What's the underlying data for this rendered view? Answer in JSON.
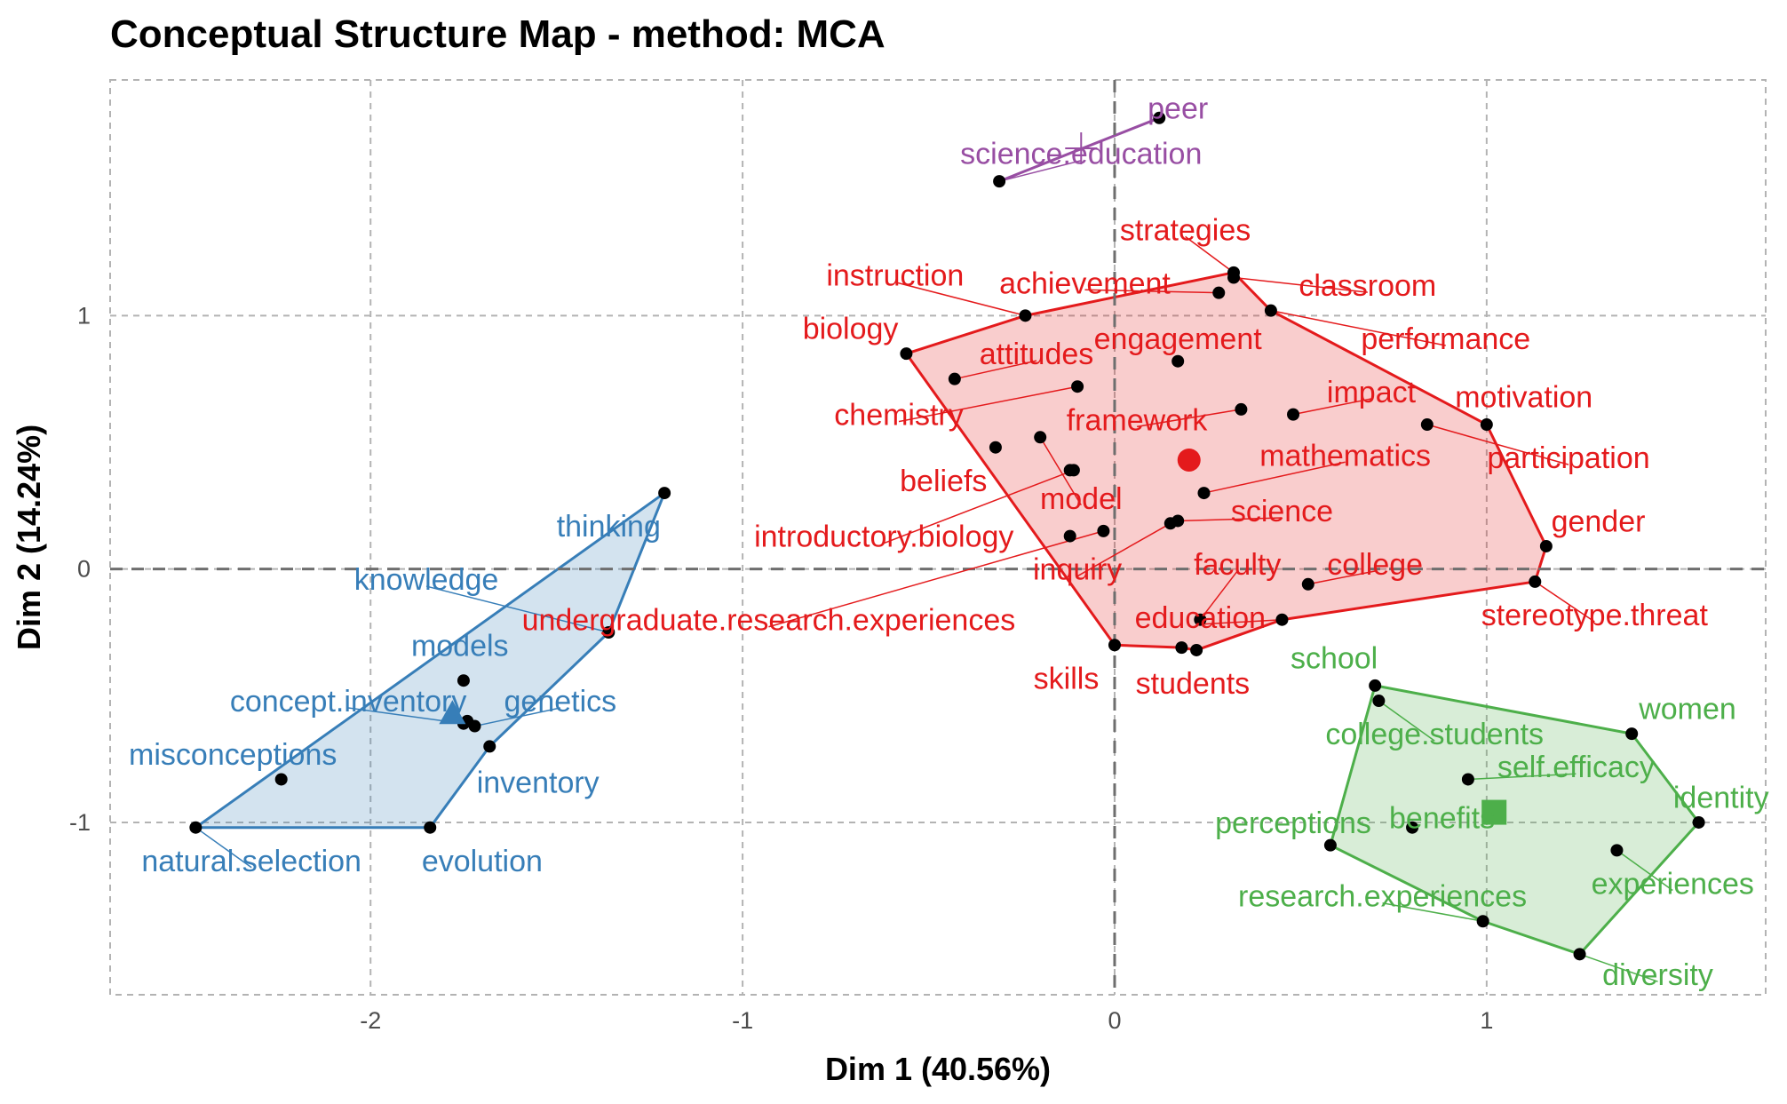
{
  "chart_data": {
    "type": "scatter",
    "title": "Conceptual Structure Map - method: MCA",
    "xlabel": "Dim 1 (40.56%)",
    "ylabel": "Dim 2 (14.24%)",
    "xlim": [
      -2.7,
      1.75
    ],
    "ylim": [
      -1.68,
      1.93
    ],
    "x_ticks": [
      -2,
      -1,
      0,
      1
    ],
    "y_ticks": [
      -1,
      0,
      1
    ],
    "grid": true,
    "colors": {
      "red": "#E41A1C",
      "blue": "#377EB8",
      "green": "#4DAF4A",
      "purple": "#984EA3"
    },
    "series": [
      {
        "name": "",
        "color": "#984EA3",
        "centroid_marker": "cross",
        "centroid": [
          -0.09,
          1.66
        ],
        "points": [
          {
            "term": "peer",
            "x": 0.12,
            "y": 1.78,
            "lx": 0.17,
            "ly": 1.82
          },
          {
            "term": "science.education",
            "x": -0.31,
            "y": 1.53,
            "lx": -0.09,
            "ly": 1.64
          }
        ]
      },
      {
        "name": "",
        "color": "#E41A1C",
        "centroid_marker": "circle",
        "centroid": [
          0.2,
          0.43
        ],
        "points": [
          {
            "term": "strategies",
            "x": 0.32,
            "y": 1.17,
            "lx": 0.19,
            "ly": 1.34
          },
          {
            "term": "instruction",
            "x": -0.24,
            "y": 1.0,
            "lx": -0.59,
            "ly": 1.16
          },
          {
            "term": "achievement",
            "x": 0.28,
            "y": 1.09,
            "lx": -0.08,
            "ly": 1.13
          },
          {
            "term": "classroom",
            "x": 0.32,
            "y": 1.15,
            "lx": 0.68,
            "ly": 1.12
          },
          {
            "term": "biology",
            "x": -0.56,
            "y": 0.85,
            "lx": -0.71,
            "ly": 0.95
          },
          {
            "term": "performance",
            "x": 0.42,
            "y": 1.02,
            "lx": 0.89,
            "ly": 0.91
          },
          {
            "term": "engagement",
            "x": 0.17,
            "y": 0.82,
            "lx": 0.17,
            "ly": 0.91
          },
          {
            "term": "attitudes",
            "x": -0.43,
            "y": 0.75,
            "lx": -0.21,
            "ly": 0.85
          },
          {
            "term": "impact",
            "x": 0.48,
            "y": 0.61,
            "lx": 0.69,
            "ly": 0.7
          },
          {
            "term": "motivation",
            "x": 1.0,
            "y": 0.57,
            "lx": 1.1,
            "ly": 0.68
          },
          {
            "term": "chemistry",
            "x": -0.1,
            "y": 0.72,
            "lx": -0.58,
            "ly": 0.61
          },
          {
            "term": "framework",
            "x": 0.34,
            "y": 0.63,
            "lx": 0.06,
            "ly": 0.59
          },
          {
            "term": "mathematics",
            "x": 0.24,
            "y": 0.3,
            "lx": 0.62,
            "ly": 0.45
          },
          {
            "term": "participation",
            "x": 0.84,
            "y": 0.57,
            "lx": 1.22,
            "ly": 0.44
          },
          {
            "term": "beliefs",
            "x": -0.32,
            "y": 0.48,
            "lx": -0.46,
            "ly": 0.35
          },
          {
            "term": "model",
            "x": -0.2,
            "y": 0.52,
            "lx": -0.09,
            "ly": 0.28
          },
          {
            "term": "science",
            "x": 0.17,
            "y": 0.19,
            "lx": 0.45,
            "ly": 0.23
          },
          {
            "term": "gender",
            "x": 1.16,
            "y": 0.09,
            "lx": 1.3,
            "ly": 0.19
          },
          {
            "term": "introductory.biology",
            "x": -0.11,
            "y": 0.39,
            "lx": -0.62,
            "ly": 0.13
          },
          {
            "term": "inquiry",
            "x": 0.15,
            "y": 0.18,
            "lx": -0.1,
            "ly": 0.0
          },
          {
            "term": "faculty",
            "x": 0.23,
            "y": -0.2,
            "lx": 0.33,
            "ly": 0.02
          },
          {
            "term": "college",
            "x": 0.52,
            "y": -0.06,
            "lx": 0.7,
            "ly": 0.02
          },
          {
            "term": "stereotype.threat",
            "x": 1.13,
            "y": -0.05,
            "lx": 1.29,
            "ly": -0.18
          },
          {
            "term": "undergraduate.research.experiences",
            "x": -0.03,
            "y": 0.15,
            "lx": -0.93,
            "ly": -0.2
          },
          {
            "term": "education",
            "x": 0.45,
            "y": -0.2,
            "lx": 0.23,
            "ly": -0.19
          },
          {
            "term": "skills",
            "x": 0.0,
            "y": -0.3,
            "lx": -0.13,
            "ly": -0.43
          },
          {
            "term": "students",
            "x": 0.18,
            "y": -0.31,
            "lx": 0.21,
            "ly": -0.45
          },
          {
            "term": "x",
            "x": 0.22,
            "y": -0.32,
            "lx": null,
            "ly": null
          },
          {
            "term": "x",
            "x": -0.12,
            "y": 0.13,
            "lx": null,
            "ly": null
          },
          {
            "term": "x",
            "x": -0.12,
            "y": 0.39,
            "lx": null,
            "ly": null
          }
        ]
      },
      {
        "name": "",
        "color": "#377EB8",
        "centroid_marker": "triangle",
        "centroid": [
          -1.78,
          -0.57
        ],
        "points": [
          {
            "term": "thinking",
            "x": -1.21,
            "y": 0.3,
            "lx": -1.36,
            "ly": 0.17
          },
          {
            "term": "knowledge",
            "x": -1.36,
            "y": -0.25,
            "lx": -1.85,
            "ly": -0.04
          },
          {
            "term": "models",
            "x": -1.75,
            "y": -0.44,
            "lx": -1.76,
            "ly": -0.3
          },
          {
            "term": "concept.inventory",
            "x": -1.75,
            "y": -0.61,
            "lx": -2.06,
            "ly": -0.52
          },
          {
            "term": "genetics",
            "x": -1.72,
            "y": -0.62,
            "lx": -1.49,
            "ly": -0.52
          },
          {
            "term": "misconceptions",
            "x": -2.24,
            "y": -0.83,
            "lx": -2.37,
            "ly": -0.73
          },
          {
            "term": "inventory",
            "x": -1.68,
            "y": -0.7,
            "lx": -1.55,
            "ly": -0.84
          },
          {
            "term": "natural.selection",
            "x": -2.47,
            "y": -1.02,
            "lx": -2.32,
            "ly": -1.15
          },
          {
            "term": "evolution",
            "x": -1.84,
            "y": -1.02,
            "lx": -1.7,
            "ly": -1.15
          },
          {
            "term": "x",
            "x": -1.74,
            "y": -0.6,
            "lx": null,
            "ly": null
          }
        ]
      },
      {
        "name": "",
        "color": "#4DAF4A",
        "centroid_marker": "square",
        "centroid": [
          1.02,
          -0.96
        ],
        "points": [
          {
            "term": "school",
            "x": 0.7,
            "y": -0.46,
            "lx": 0.59,
            "ly": -0.35
          },
          {
            "term": "college.students",
            "x": 0.71,
            "y": -0.52,
            "lx": 0.86,
            "ly": -0.65
          },
          {
            "term": "women",
            "x": 1.39,
            "y": -0.65,
            "lx": 1.54,
            "ly": -0.55
          },
          {
            "term": "self.efficacy",
            "x": 0.95,
            "y": -0.83,
            "lx": 1.24,
            "ly": -0.78
          },
          {
            "term": "identity",
            "x": 1.57,
            "y": -1.0,
            "lx": 1.63,
            "ly": -0.9
          },
          {
            "term": "perceptions",
            "x": 0.58,
            "y": -1.09,
            "lx": 0.48,
            "ly": -1.0
          },
          {
            "term": "benefits",
            "x": 0.8,
            "y": -1.02,
            "lx": 0.88,
            "ly": -0.98
          },
          {
            "term": "research.experiences",
            "x": 0.99,
            "y": -1.39,
            "lx": 0.72,
            "ly": -1.29
          },
          {
            "term": "experiences",
            "x": 1.35,
            "y": -1.11,
            "lx": 1.5,
            "ly": -1.24
          },
          {
            "term": "diversity",
            "x": 1.25,
            "y": -1.52,
            "lx": 1.46,
            "ly": -1.6
          }
        ]
      }
    ],
    "hulls": [
      {
        "color": "#E41A1C",
        "points": [
          [
            -0.56,
            0.85
          ],
          [
            -0.24,
            1.0
          ],
          [
            0.32,
            1.17
          ],
          [
            0.42,
            1.02
          ],
          [
            1.0,
            0.57
          ],
          [
            1.16,
            0.09
          ],
          [
            1.13,
            -0.05
          ],
          [
            0.45,
            -0.2
          ],
          [
            0.22,
            -0.32
          ],
          [
            0.18,
            -0.31
          ],
          [
            0.0,
            -0.3
          ]
        ]
      },
      {
        "color": "#377EB8",
        "points": [
          [
            -1.21,
            0.3
          ],
          [
            -1.36,
            -0.25
          ],
          [
            -1.68,
            -0.7
          ],
          [
            -1.84,
            -1.02
          ],
          [
            -2.47,
            -1.02
          ]
        ]
      },
      {
        "color": "#4DAF4A",
        "points": [
          [
            0.7,
            -0.46
          ],
          [
            1.39,
            -0.65
          ],
          [
            1.57,
            -1.0
          ],
          [
            1.25,
            -1.52
          ],
          [
            0.99,
            -1.39
          ],
          [
            0.58,
            -1.09
          ]
        ]
      },
      {
        "color": "#984EA3",
        "points": [
          [
            -0.31,
            1.53
          ],
          [
            0.12,
            1.78
          ]
        ]
      }
    ]
  }
}
